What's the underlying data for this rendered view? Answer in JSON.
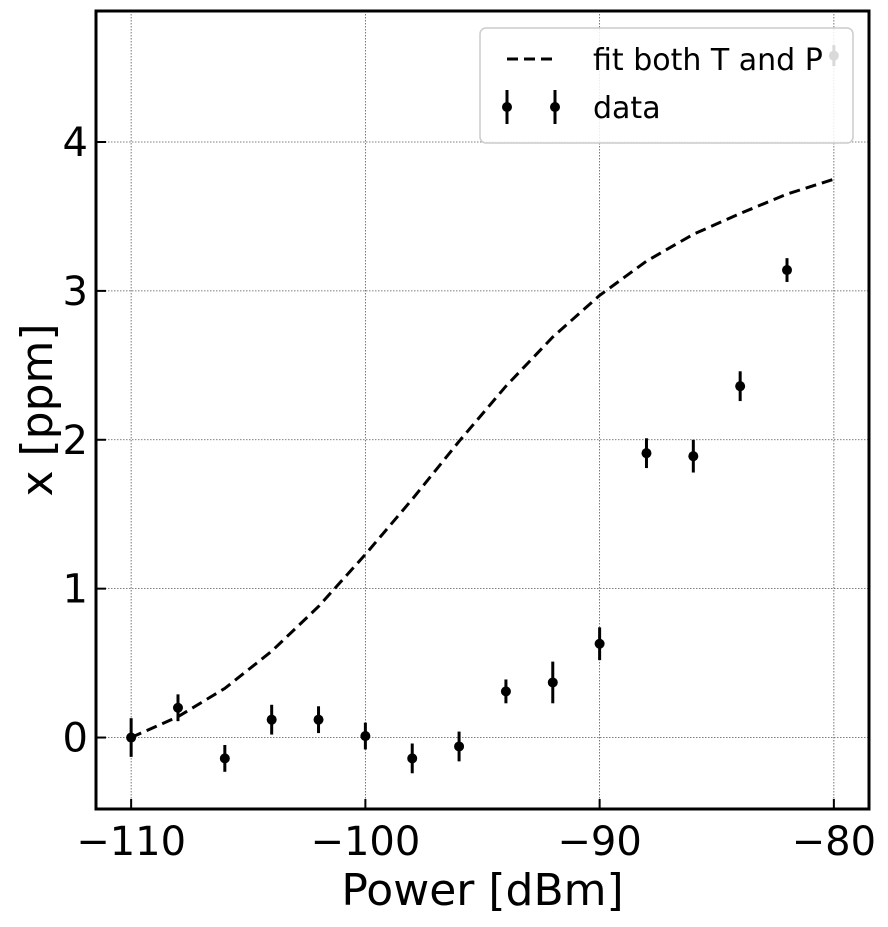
{
  "chart_data": {
    "type": "scatter",
    "xlabel": "Power [dBm]",
    "ylabel": "x [ppm]",
    "xlim": [
      -111.5,
      -78.5
    ],
    "ylim": [
      -0.48,
      4.88
    ],
    "xticks": [
      -110,
      -100,
      -90,
      -80
    ],
    "xtick_labels": [
      "−110",
      "−100",
      "−90",
      "−80"
    ],
    "yticks": [
      0,
      1,
      2,
      3,
      4
    ],
    "ytick_labels": [
      "0",
      "1",
      "2",
      "3",
      "4"
    ],
    "grid": true,
    "legend_position": "top-right",
    "series": [
      {
        "name": "fit both T and P",
        "kind": "line",
        "style": "dashed",
        "color": "#000000",
        "x": [
          -110,
          -108,
          -106,
          -104,
          -102,
          -100,
          -98,
          -96,
          -94,
          -92,
          -90,
          -88,
          -86,
          -84,
          -82,
          -80
        ],
        "y": [
          0.0,
          0.14,
          0.33,
          0.58,
          0.88,
          1.23,
          1.6,
          1.99,
          2.36,
          2.69,
          2.97,
          3.2,
          3.38,
          3.52,
          3.65,
          3.75
        ]
      },
      {
        "name": "data",
        "kind": "errorbar",
        "color": "#000000",
        "x": [
          -110,
          -108,
          -106,
          -104,
          -102,
          -100,
          -98,
          -96,
          -94,
          -92,
          -90,
          -88,
          -86,
          -84,
          -82,
          -80
        ],
        "y": [
          0.0,
          0.2,
          -0.14,
          0.12,
          0.12,
          0.01,
          -0.14,
          -0.06,
          0.31,
          0.37,
          0.63,
          1.91,
          1.89,
          2.36,
          3.14,
          4.58
        ],
        "err": [
          0.13,
          0.09,
          0.09,
          0.1,
          0.09,
          0.09,
          0.1,
          0.1,
          0.08,
          0.14,
          0.11,
          0.1,
          0.11,
          0.1,
          0.08,
          0.07
        ]
      }
    ]
  }
}
